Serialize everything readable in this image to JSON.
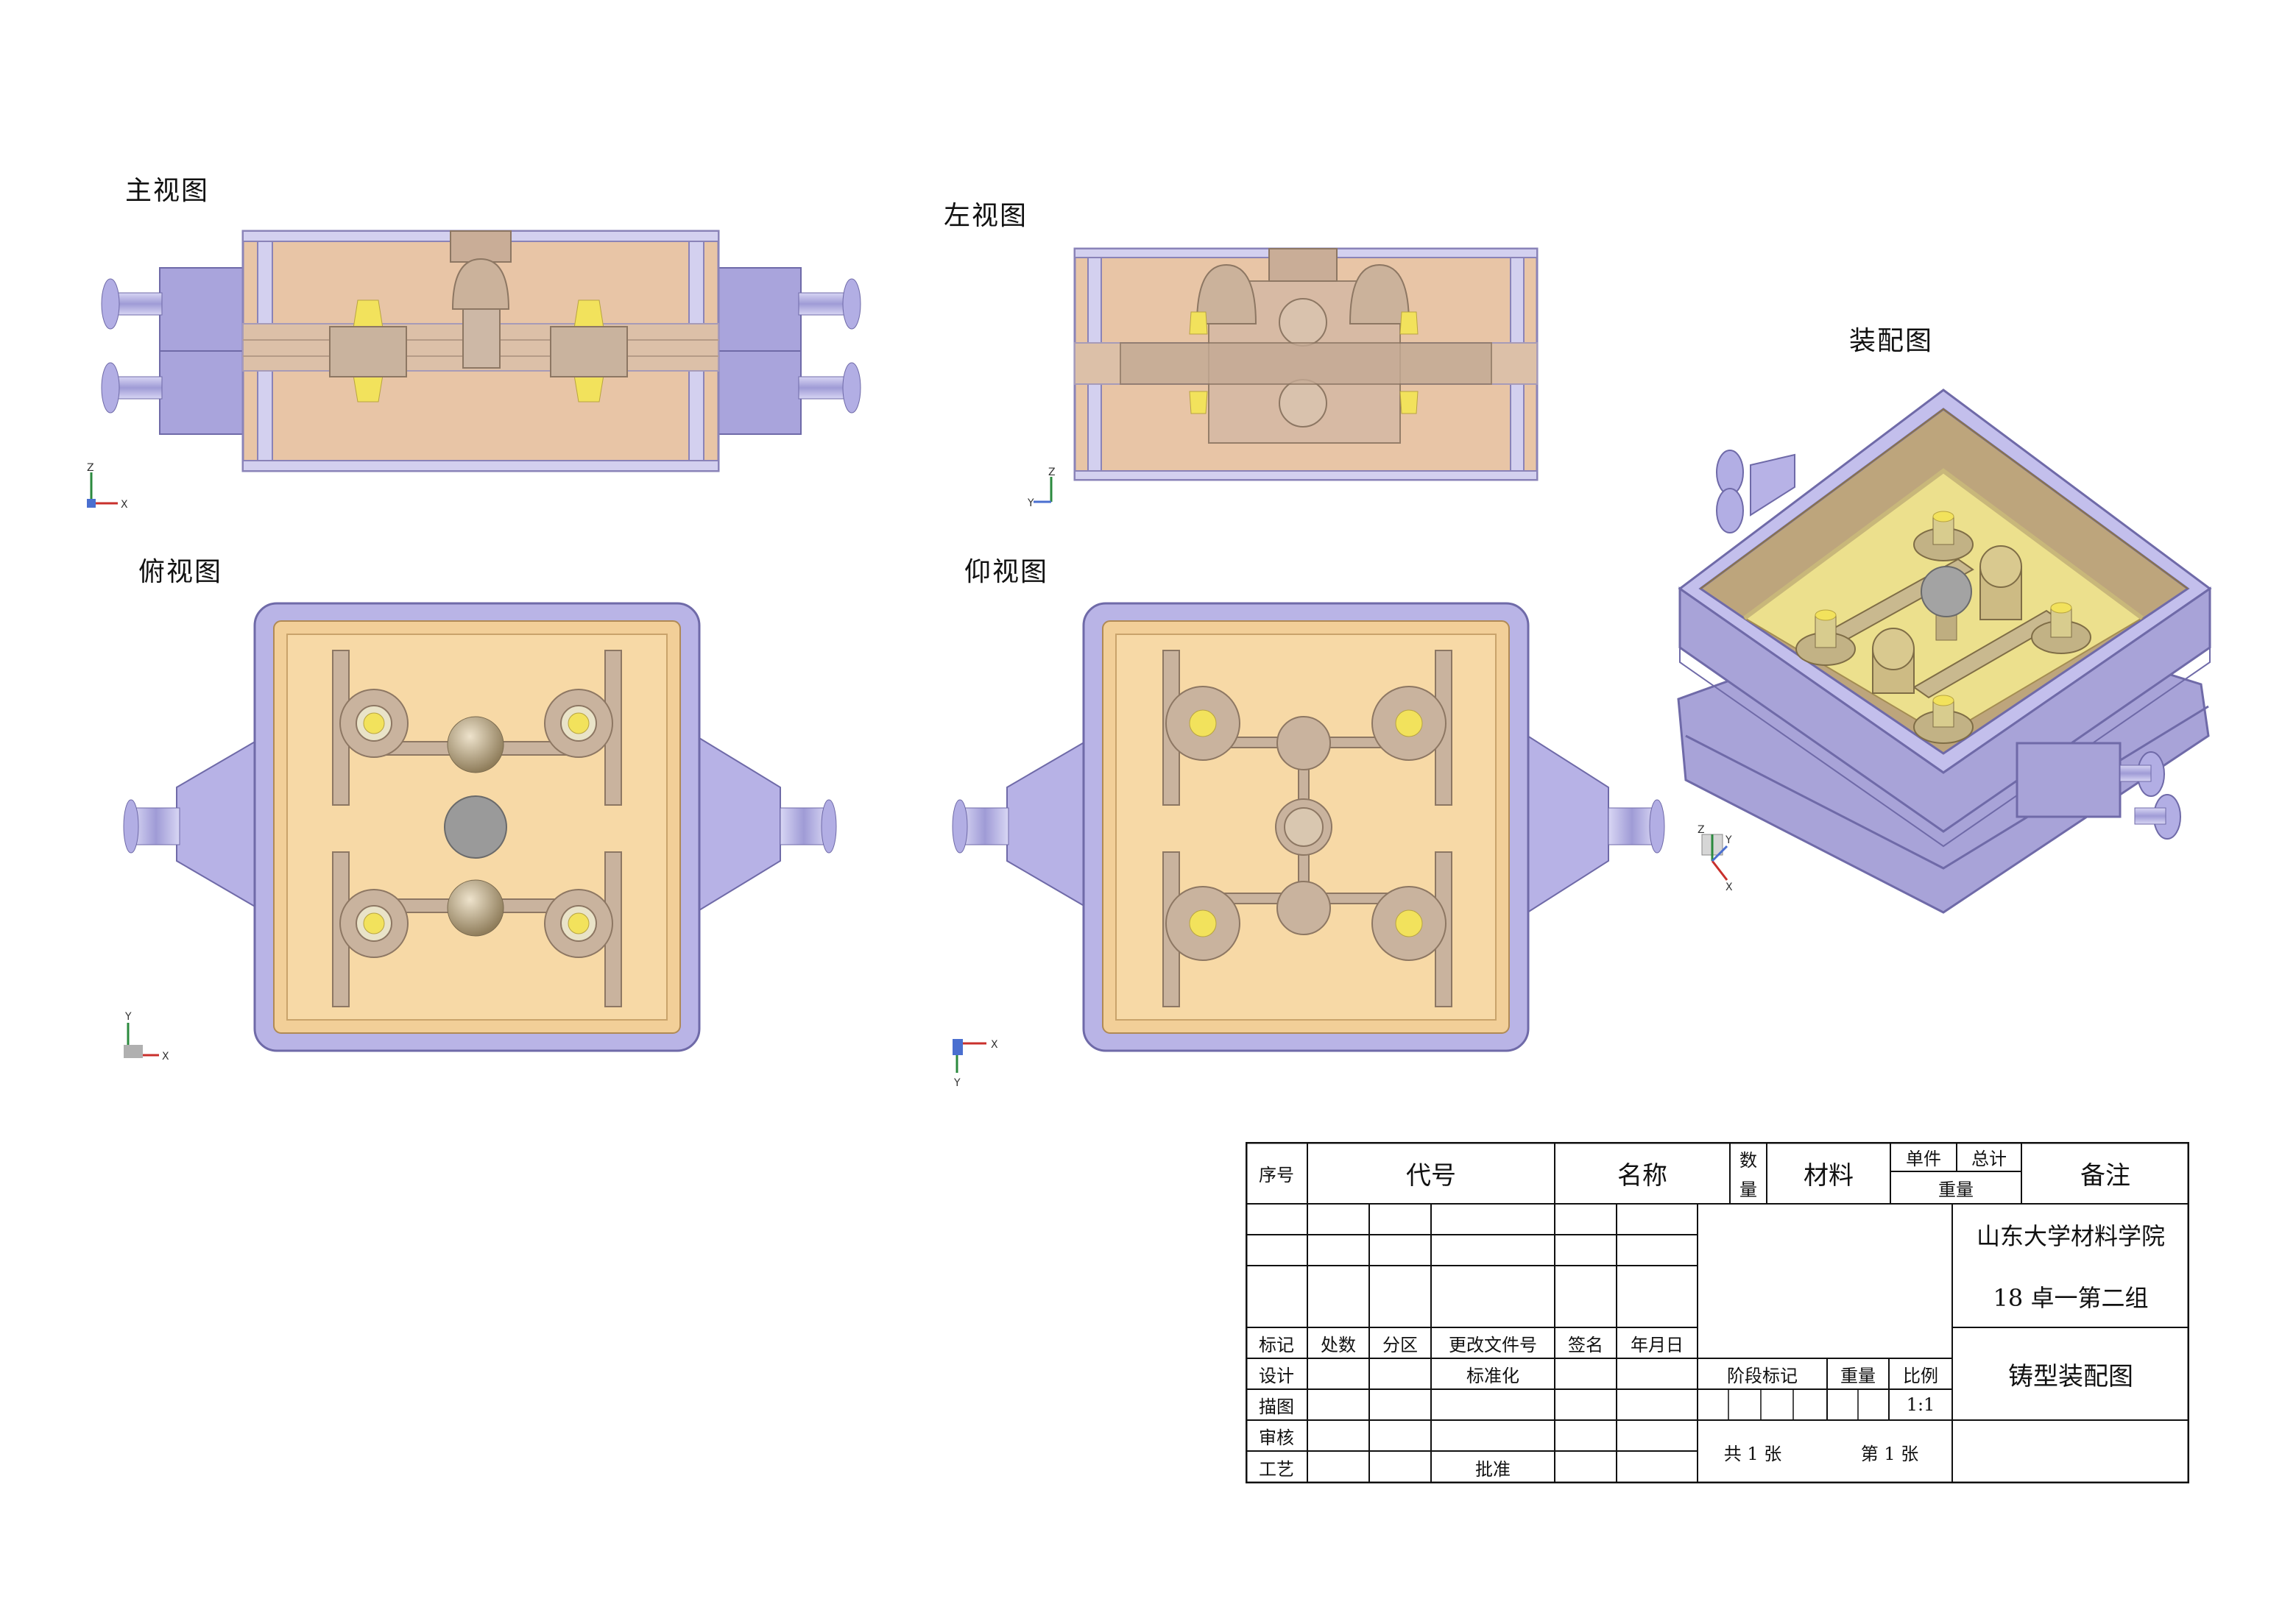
{
  "views": {
    "front": "主视图",
    "left": "左视图",
    "assembly": "装配图",
    "top": "俯视图",
    "bottom": "仰视图"
  },
  "axes": {
    "front": [
      "Z",
      "X"
    ],
    "left": [
      "Z",
      "Y"
    ],
    "top": [
      "Y",
      "X"
    ],
    "bottom": [
      "X",
      "Y"
    ],
    "iso": [
      "Z",
      "Y",
      "X"
    ]
  },
  "title_block": {
    "header": {
      "seq": "序号",
      "code": "代号",
      "name": "名称",
      "qty_1": "数",
      "qty_2": "量",
      "material": "材料",
      "unit": "单件",
      "total": "总计",
      "weight": "重量",
      "remark": "备注"
    },
    "revision": {
      "mark": "标记",
      "count": "处数",
      "zone": "分区",
      "doc": "更改文件号",
      "sign": "签名",
      "date": "年月日"
    },
    "roles": {
      "design": "设计",
      "standard": "标准化",
      "draw": "描图",
      "check": "审核",
      "process": "工艺",
      "approve": "批准"
    },
    "stage": {
      "stage_mark": "阶段标记",
      "weight": "重量",
      "scale_label": "比例",
      "scale": "1:1",
      "total_sheets": "共 1 张",
      "sheet_no": "第 1 张"
    },
    "org_line1": "山东大学材料学院",
    "org_line2": "18 卓一第二组",
    "drawing_title": "铸型装配图"
  },
  "colors": {
    "flask": "#b9b4e6",
    "flask_edge": "#6f6aa8",
    "sand": "#f7d9a6",
    "sand_front": "#e6bf9e",
    "pattern": "#c2b496",
    "core": "#f2e25c",
    "sprue": "#9a9a9a"
  }
}
